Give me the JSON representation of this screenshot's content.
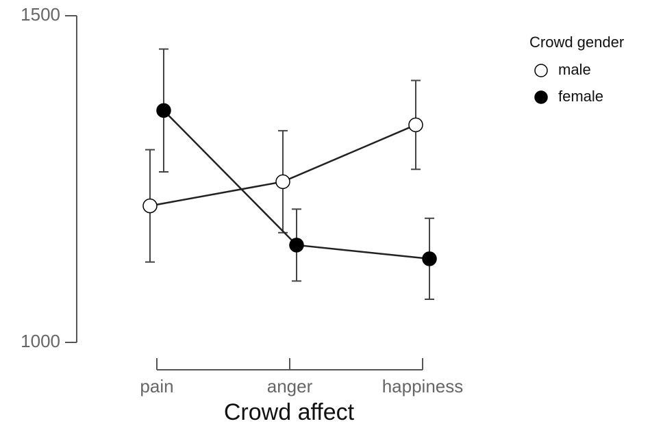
{
  "chart_data": {
    "type": "line",
    "xlabel": "Crowd affect",
    "categories": [
      "pain",
      "anger",
      "happiness"
    ],
    "series": [
      {
        "name": "male",
        "color": "#ffffff",
        "values": [
          1209,
          1246,
          1333
        ],
        "errors": [
          86,
          78,
          68
        ]
      },
      {
        "name": "female",
        "color": "#000000",
        "values": [
          1355,
          1149,
          1128
        ],
        "errors": [
          94,
          55,
          62
        ]
      }
    ],
    "ylim": [
      1000,
      1500
    ],
    "yticks": [
      1000,
      1500
    ],
    "legend_title": "Crowd gender",
    "legend": "upper right"
  }
}
